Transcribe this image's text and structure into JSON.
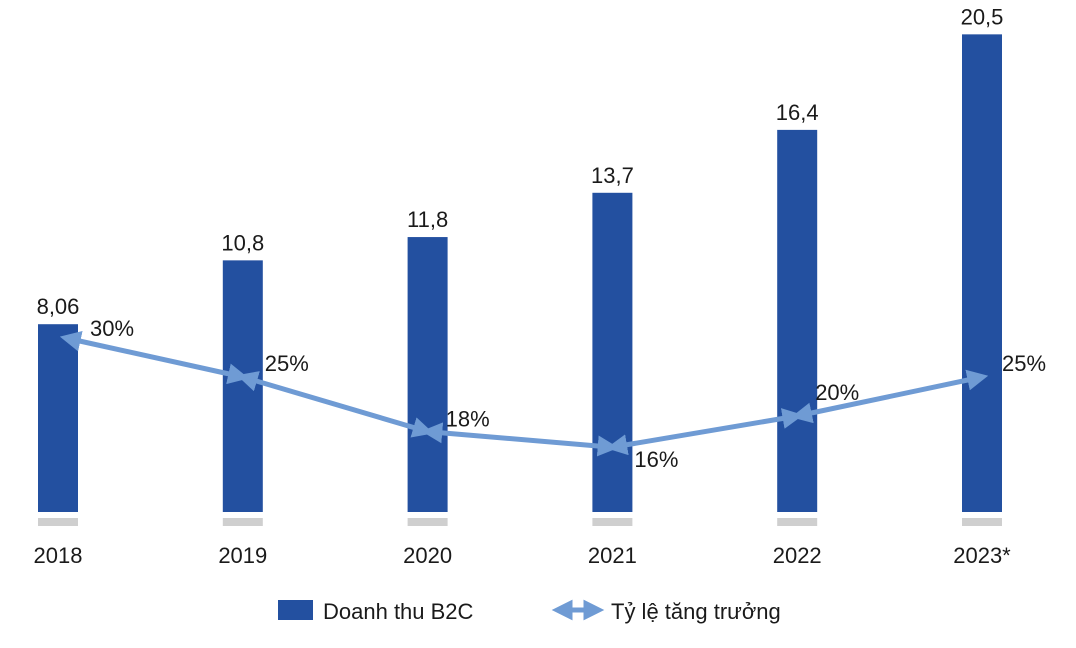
{
  "chart_data": {
    "type": "bar",
    "categories": [
      "2018",
      "2019",
      "2020",
      "2021",
      "2022",
      "2023*"
    ],
    "series": [
      {
        "name": "Doanh thu B2C",
        "type": "bar",
        "values": [
          8.06,
          10.8,
          11.8,
          13.7,
          16.4,
          20.5
        ],
        "labels": [
          "8,06",
          "10,8",
          "11,8",
          "13,7",
          "16,4",
          "20,5"
        ],
        "color": "#2350a0"
      },
      {
        "name": "Tỷ lệ tăng trưởng",
        "type": "line",
        "values": [
          30,
          25,
          18,
          16,
          20,
          25
        ],
        "labels": [
          "30%",
          "25%",
          "18%",
          "16%",
          "20%",
          "25%"
        ],
        "color": "#6f9bd4"
      }
    ],
    "title": "",
    "xlabel": "",
    "ylabel": "",
    "legend_position": "bottom-center",
    "grid": false
  }
}
